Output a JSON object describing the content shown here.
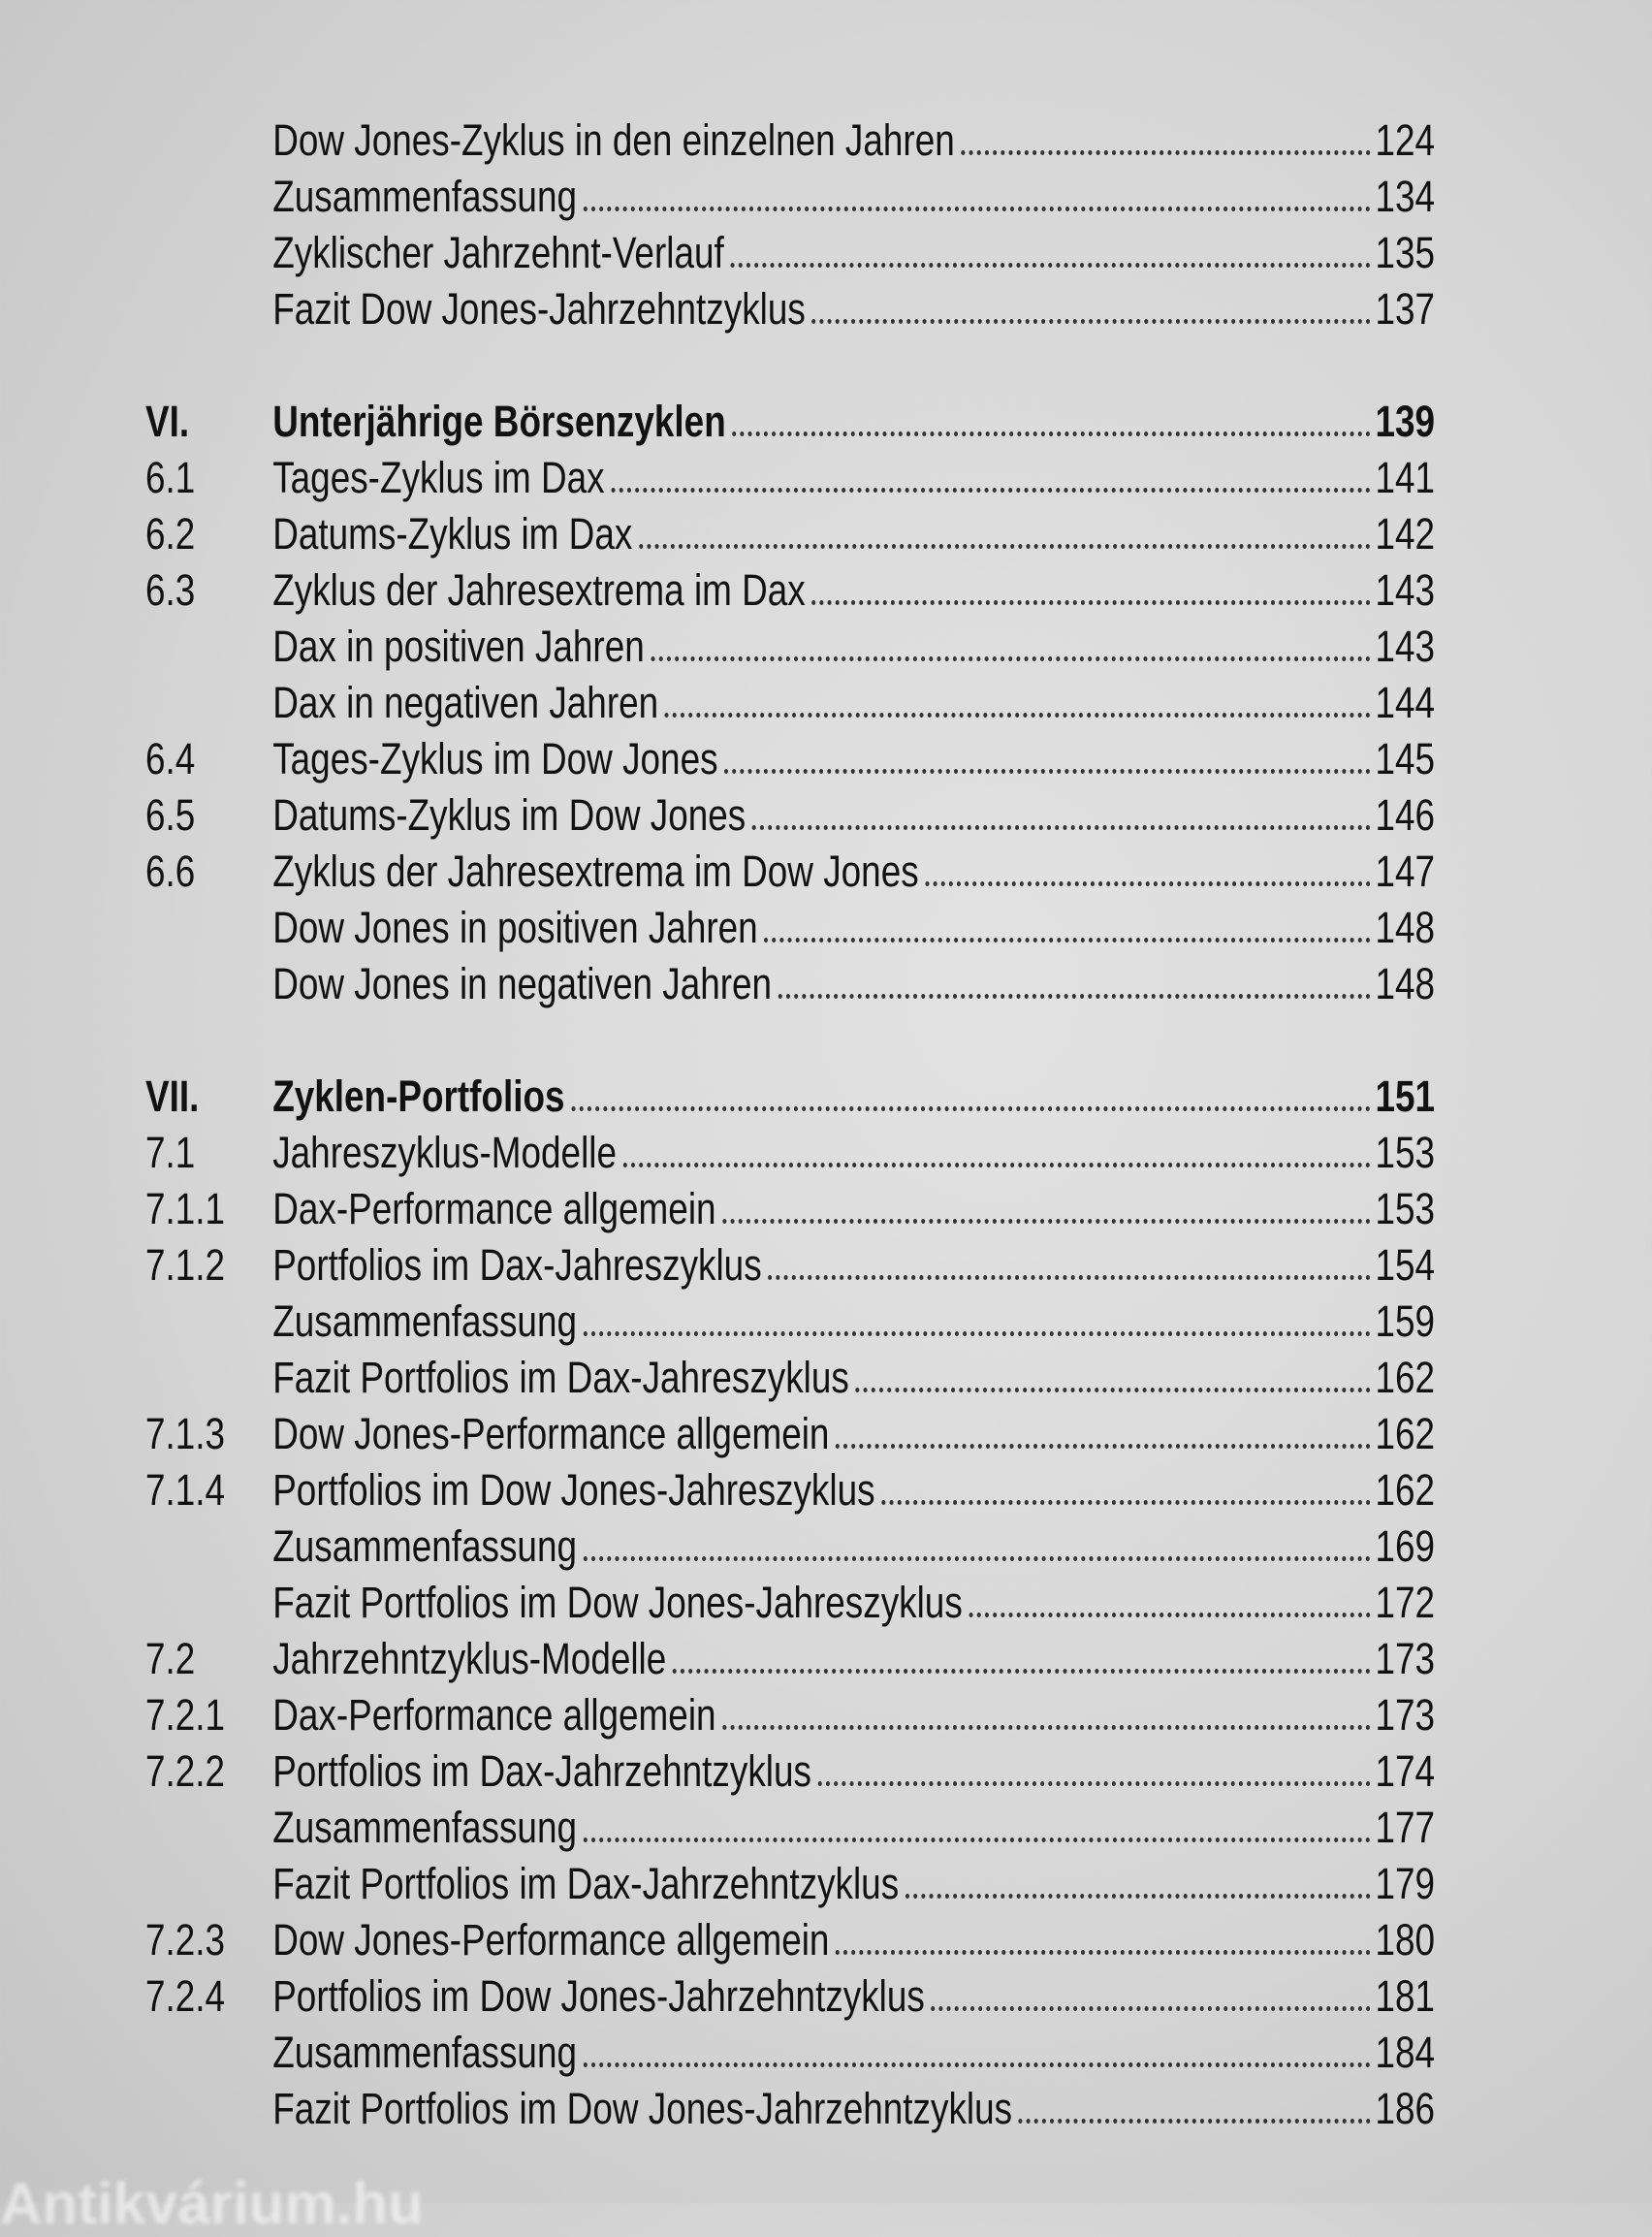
{
  "toc": [
    {
      "num": "",
      "title": "Dow Jones-Zyklus in den einzelnen Jahren",
      "page": "124"
    },
    {
      "num": "",
      "title": "Zusammenfassung",
      "page": "134"
    },
    {
      "num": "",
      "title": "Zyklischer Jahrzehnt-Verlauf",
      "page": "135"
    },
    {
      "num": "",
      "title": "Fazit Dow Jones-Jahrzehntzyklus",
      "page": "137"
    },
    {
      "spacer": true
    },
    {
      "num": "VI.",
      "title": "Unterjährige Börsenzyklen",
      "page": "139",
      "bold": true
    },
    {
      "num": "6.1",
      "title": "Tages-Zyklus im Dax",
      "page": "141"
    },
    {
      "num": "6.2",
      "title": "Datums-Zyklus im Dax",
      "page": "142"
    },
    {
      "num": "6.3",
      "title": "Zyklus der Jahresextrema im Dax",
      "page": "143"
    },
    {
      "num": "",
      "title": "Dax in positiven Jahren",
      "page": "143"
    },
    {
      "num": "",
      "title": "Dax in negativen Jahren",
      "page": "144"
    },
    {
      "num": "6.4",
      "title": "Tages-Zyklus im Dow Jones",
      "page": "145"
    },
    {
      "num": "6.5",
      "title": "Datums-Zyklus im Dow Jones",
      "page": "146"
    },
    {
      "num": "6.6",
      "title": "Zyklus der Jahresextrema im Dow Jones",
      "page": "147"
    },
    {
      "num": "",
      "title": "Dow Jones in positiven Jahren",
      "page": "148"
    },
    {
      "num": "",
      "title": "Dow Jones in negativen Jahren",
      "page": "148"
    },
    {
      "spacer": true
    },
    {
      "num": "VII.",
      "title": "Zyklen-Portfolios",
      "page": "151",
      "bold": true
    },
    {
      "num": "7.1",
      "title": "Jahreszyklus-Modelle",
      "page": "153"
    },
    {
      "num": "7.1.1",
      "title": "Dax-Performance allgemein",
      "page": "153"
    },
    {
      "num": "7.1.2",
      "title": "Portfolios im Dax-Jahreszyklus",
      "page": "154"
    },
    {
      "num": "",
      "title": "Zusammenfassung",
      "page": "159"
    },
    {
      "num": "",
      "title": "Fazit Portfolios im Dax-Jahreszyklus",
      "page": "162"
    },
    {
      "num": "7.1.3",
      "title": "Dow Jones-Performance allgemein",
      "page": "162"
    },
    {
      "num": "7.1.4",
      "title": "Portfolios im Dow Jones-Jahreszyklus",
      "page": "162"
    },
    {
      "num": "",
      "title": "Zusammenfassung",
      "page": "169"
    },
    {
      "num": "",
      "title": "Fazit Portfolios im Dow Jones-Jahreszyklus",
      "page": "172"
    },
    {
      "num": "7.2",
      "title": "Jahrzehntzyklus-Modelle",
      "page": "173"
    },
    {
      "num": "7.2.1",
      "title": "Dax-Performance allgemein",
      "page": "173"
    },
    {
      "num": "7.2.2",
      "title": "Portfolios im Dax-Jahrzehntzyklus",
      "page": "174"
    },
    {
      "num": "",
      "title": "Zusammenfassung",
      "page": "177"
    },
    {
      "num": "",
      "title": "Fazit Portfolios im Dax-Jahrzehntzyklus",
      "page": "179"
    },
    {
      "num": "7.2.3",
      "title": "Dow Jones-Performance allgemein",
      "page": "180"
    },
    {
      "num": "7.2.4",
      "title": "Portfolios im Dow Jones-Jahrzehntzyklus",
      "page": "181"
    },
    {
      "num": "",
      "title": "Zusammenfassung",
      "page": "184"
    },
    {
      "num": "",
      "title": "Fazit Portfolios im Dow Jones-Jahrzehntzyklus",
      "page": "186"
    }
  ],
  "watermark": "Antikvárium.hu"
}
